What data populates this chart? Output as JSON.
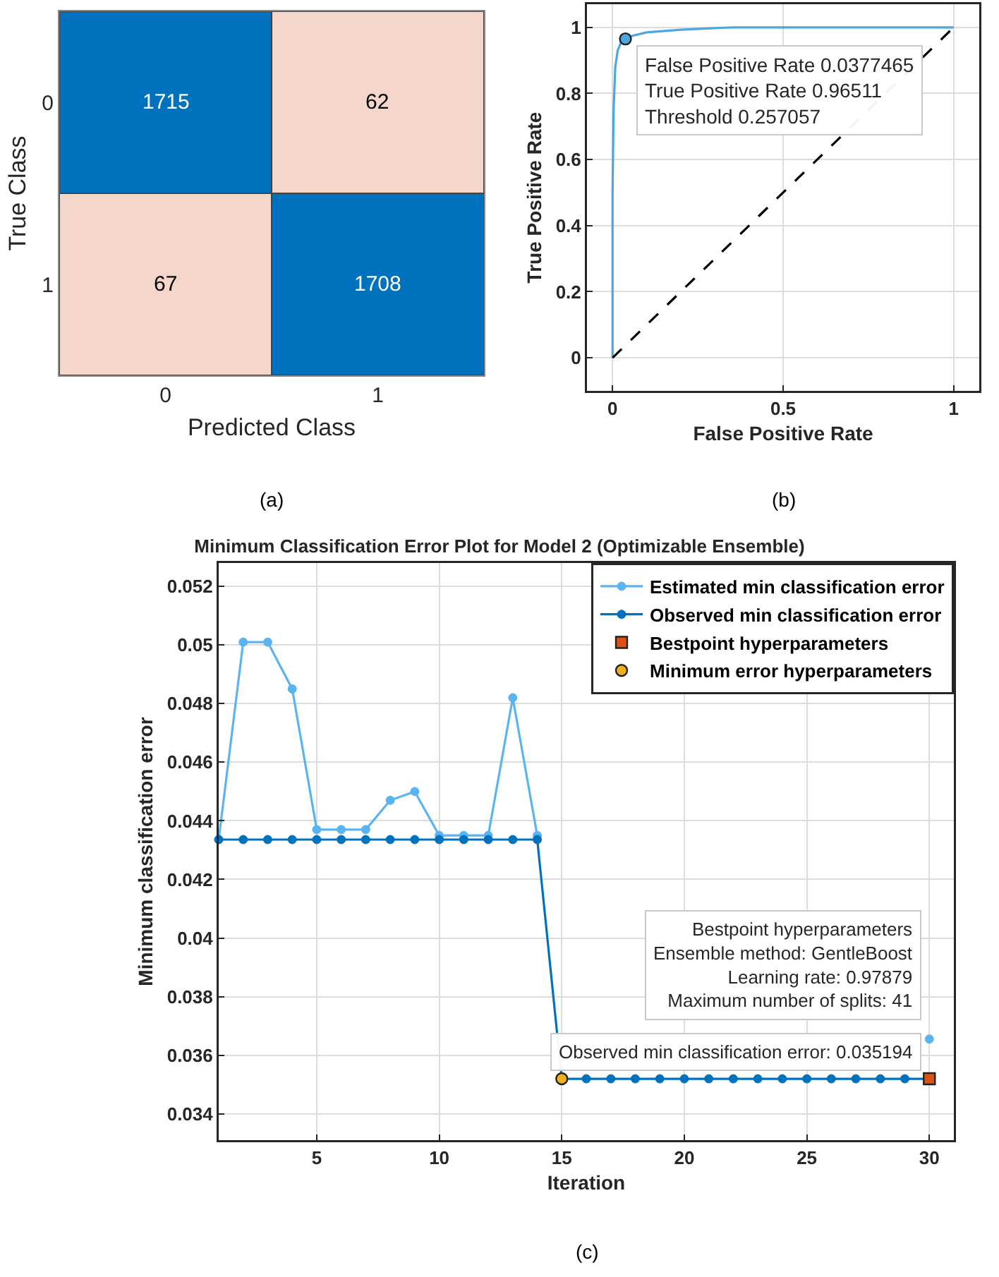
{
  "chart_data": [
    {
      "type": "heatmap",
      "xlabel": "Predicted Class",
      "ylabel": "True Class",
      "categories": [
        "0",
        "1"
      ],
      "y_categories": [
        "0",
        "1"
      ],
      "cells": [
        [
          1715,
          62
        ],
        [
          67,
          1708
        ]
      ],
      "colors": [
        [
          "#0072bd",
          "#f5d6cb"
        ],
        [
          "#f5d6cb",
          "#0072bd"
        ]
      ],
      "data_labels": true,
      "annotations": [
        "(a)"
      ]
    },
    {
      "type": "line",
      "xlabel": "False Positive Rate",
      "ylabel": "True Positive Rate",
      "xlim": [
        -0.075,
        1.075
      ],
      "ylim": [
        -0.1,
        1.07
      ],
      "xticks": [
        0,
        0.5,
        1
      ],
      "yticks": [
        0,
        0.2,
        0.4,
        0.6,
        0.8,
        1
      ],
      "grid": true,
      "legend": false,
      "series": [
        {
          "color": "#4da6e0",
          "x": [
            0,
            0,
            0.003,
            0.008,
            0.015,
            0.025,
            0.0377465,
            0.06,
            0.1,
            0.2,
            0.35,
            0.6,
            1
          ],
          "values": [
            0,
            0.5,
            0.75,
            0.88,
            0.93,
            0.955,
            0.96511,
            0.975,
            0.985,
            0.993,
            1,
            1,
            1
          ],
          "marker": "none",
          "line_style": "solid"
        },
        {
          "color": "#000000",
          "x": [
            0,
            1
          ],
          "values": [
            0,
            1
          ],
          "marker": "none",
          "line_style": "dashed"
        },
        {
          "type": "scatter",
          "color": "#4da6e0",
          "x": [
            0.0377465
          ],
          "values": [
            0.96511
          ],
          "marker": "circle"
        }
      ],
      "annotations": [
        {
          "text": "False Positive Rate 0.0377465\nTrue Positive Rate 0.96511\nThreshold 0.257057",
          "x": 0.0377465,
          "y": 0.96511
        },
        "(b)"
      ]
    },
    {
      "type": "line",
      "title": "Minimum Classification Error Plot for Model 2 (Optimizable Ensemble)",
      "xlabel": "Iteration",
      "ylabel": "Minimum classification error",
      "xlim": [
        1,
        31
      ],
      "ylim": [
        0.0331,
        0.0528
      ],
      "xticks": [
        5,
        10,
        15,
        20,
        25,
        30
      ],
      "yticks": [
        0.034,
        0.036,
        0.038,
        0.04,
        0.042,
        0.044,
        0.046,
        0.048,
        0.05,
        0.052
      ],
      "grid": true,
      "legend": "top right",
      "x": [
        1,
        2,
        3,
        4,
        5,
        6,
        7,
        8,
        9,
        10,
        11,
        12,
        13,
        14,
        15,
        16,
        17,
        18,
        19,
        20,
        21,
        22,
        23,
        24,
        25,
        26,
        27,
        28,
        29,
        30
      ],
      "series": [
        {
          "name": "Estimated min classification error",
          "color": "#5ab4f0",
          "marker": "circle",
          "line_style": "solid",
          "values": [
            0.04336,
            0.0501,
            0.0501,
            0.0485,
            0.0437,
            0.0437,
            0.0437,
            0.0447,
            0.045,
            0.0435,
            0.0435,
            0.0435,
            0.0482,
            0.0435,
            null,
            null,
            null,
            null,
            null,
            null,
            null,
            null,
            null,
            null,
            null,
            null,
            null,
            null,
            null,
            0.03655
          ]
        },
        {
          "name": "Observed min classification error",
          "color": "#0072bd",
          "marker": "circle",
          "line_style": "solid",
          "values": [
            0.04336,
            0.04336,
            0.04336,
            0.04336,
            0.04336,
            0.04336,
            0.04336,
            0.04336,
            0.04336,
            0.04336,
            0.04336,
            0.04336,
            0.04336,
            0.04336,
            0.035194,
            0.035194,
            0.035194,
            0.035194,
            0.035194,
            0.035194,
            0.035194,
            0.035194,
            0.035194,
            0.035194,
            0.035194,
            0.035194,
            0.035194,
            0.035194,
            0.035194,
            0.035194
          ]
        },
        {
          "type": "scatter",
          "name": "Bestpoint hyperparameters",
          "color": "#d95319",
          "marker": "square",
          "x": [
            30
          ],
          "values": [
            0.035194
          ]
        },
        {
          "type": "scatter",
          "name": "Minimum error hyperparameters",
          "color": "#edb120",
          "marker": "circle",
          "x": [
            15
          ],
          "values": [
            0.035194
          ]
        }
      ],
      "annotations": [
        "Bestpoint hyperparameters\nEnsemble method: GentleBoost\nLearning rate: 0.97879\nMaximum number of splits: 41",
        {
          "text": "Observed min classification error: 0.035194",
          "x": 30,
          "y": 0.035194
        },
        "(c)"
      ]
    }
  ]
}
